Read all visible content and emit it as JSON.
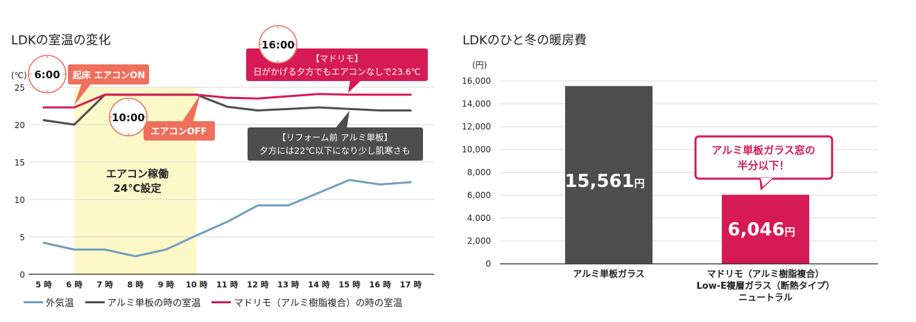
{
  "colors": {
    "outdoor": "#6f9fbd",
    "aluminum": "#4d4d4d",
    "madorimo": "#d51a55",
    "ac_band": "#fdf8c8",
    "salmon": "#ee6f5c",
    "grid": "#d9d9d9"
  },
  "chart_data": [
    {
      "type": "line",
      "title": "LDKの室温の変化",
      "ylabel": "(℃)",
      "ylim": [
        0,
        25
      ],
      "yticks": [
        "0",
        "5",
        "10",
        "15",
        "20",
        "25"
      ],
      "x": [
        "5 時",
        "6 時",
        "7 時",
        "8 時",
        "9 時",
        "10 時",
        "11 時",
        "12 時",
        "13 時",
        "14 時",
        "15 時",
        "16 時",
        "17 時"
      ],
      "grid": true,
      "legend_position": "bottom",
      "series": [
        {
          "name": "外気温",
          "color_key": "outdoor",
          "values": [
            4.2,
            3.3,
            3.3,
            2.4,
            3.3,
            5.2,
            7.0,
            9.2,
            9.2,
            10.9,
            12.6,
            12.0,
            12.3
          ]
        },
        {
          "name": "アルミ単板の時の室温",
          "color_key": "aluminum",
          "values": [
            20.6,
            20.0,
            24.0,
            24.0,
            24.0,
            24.0,
            22.4,
            21.9,
            22.1,
            22.3,
            22.1,
            21.9,
            21.9
          ]
        },
        {
          "name": "マドリモ（アルミ樹脂複合）の時の室温",
          "color_key": "madorimo",
          "values": [
            22.3,
            22.3,
            24.0,
            24.0,
            24.0,
            24.0,
            23.6,
            23.5,
            23.8,
            24.1,
            24.0,
            24.0,
            24.0
          ]
        }
      ],
      "ac_band": {
        "from_hour_index": 1,
        "to_hour_index": 5,
        "label_line1": "エアコン稼働",
        "label_line2": "24℃設定"
      },
      "annotations": {
        "clock_6": "6:00",
        "clock_10": "10:00",
        "clock_16": "16:00",
        "ac_on": "起床 エアコンON",
        "ac_off": "エアコンOFF",
        "madorimo_line1": "【マドリモ】",
        "madorimo_line2": "日がかげる夕方でもエアコンなしで23.6℃",
        "aluminum_line1": "【リフォーム前 アルミ単板】",
        "aluminum_line2": "夕方には22℃以下になり少し肌寒さも"
      }
    },
    {
      "type": "bar",
      "title": "LDKのひと冬の暖房費",
      "ylabel": "(円)",
      "ylim": [
        0,
        16000
      ],
      "yticks": [
        "0",
        "2,000",
        "4,000",
        "6,000",
        "8,000",
        "10,000",
        "12,000",
        "14,000",
        "16,000"
      ],
      "grid": true,
      "categories": [
        {
          "lines": [
            "アルミ単板ガラス"
          ]
        },
        {
          "lines": [
            "マドリモ（アルミ樹脂複合）",
            "Low-E複層ガラス（断熱タイプ）",
            "ニュートラル"
          ]
        }
      ],
      "values": [
        15561,
        6046
      ],
      "value_labels": [
        "15,561",
        "6,046"
      ],
      "unit": "円",
      "bar_color_keys": [
        "aluminum",
        "madorimo"
      ],
      "callout_line1": "アルミ単板ガラス窓の",
      "callout_line2": "半分以下！"
    }
  ]
}
